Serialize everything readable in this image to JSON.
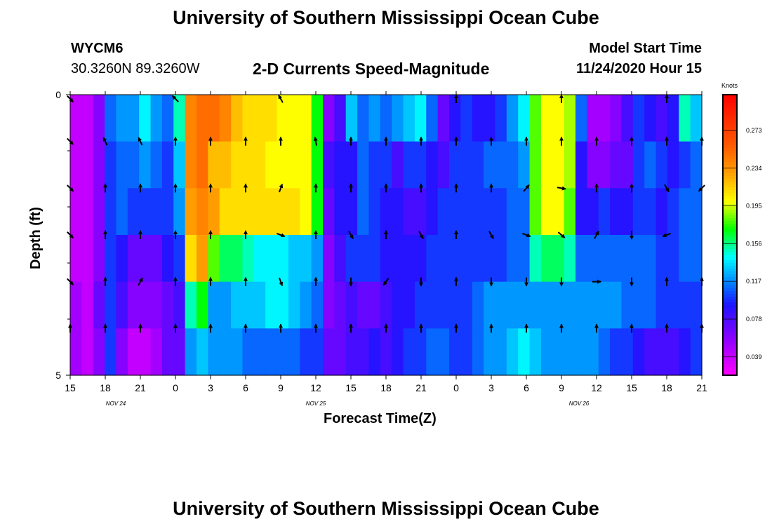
{
  "header": {
    "title": "University of Southern Mississippi Ocean Cube",
    "station": "WYCM6",
    "coords": "30.3260N 89.3260W",
    "plot_title": "2-D Currents Speed-Magnitude",
    "model_start_label": "Model Start Time",
    "model_start_value": "11/24/2020 Hour 15"
  },
  "footer": {
    "title": "University of Southern Mississippi Ocean Cube"
  },
  "chart_data": {
    "type": "heatmap",
    "title": "2-D Currents Speed-Magnitude",
    "xlabel": "Forecast Time(Z)",
    "ylabel": "Depth (ft)",
    "x_tick_labels": [
      "15",
      "18",
      "21",
      "0",
      "3",
      "6",
      "9",
      "12",
      "15",
      "18",
      "21",
      "0",
      "3",
      "6",
      "9",
      "12",
      "15",
      "18",
      "21"
    ],
    "y_tick_labels": [
      "0",
      "5"
    ],
    "ylim": [
      0,
      5
    ],
    "date_labels": [
      {
        "text": "NOV  24",
        "tick_index": 1.3
      },
      {
        "text": "NOV  25",
        "tick_index": 7.0
      },
      {
        "text": "NOV  26",
        "tick_index": 14.5
      }
    ],
    "hours_per_tick": 3,
    "num_time_steps": 55,
    "colorbar": {
      "unit": "Knots",
      "min": 0.02,
      "max": 0.31,
      "ticks": [
        "0.039",
        "0.078",
        "0.117",
        "0.156",
        "0.195",
        "0.234",
        "0.273"
      ]
    },
    "speed_rows_knots": [
      [
        0.04,
        0.04,
        0.06,
        0.11,
        0.12,
        0.12,
        0.14,
        0.12,
        0.11,
        0.15,
        0.24,
        0.25,
        0.25,
        0.24,
        0.22,
        0.21,
        0.21,
        0.21,
        0.2,
        0.2,
        0.2,
        0.17,
        0.06,
        0.08,
        0.13,
        0.11,
        0.12,
        0.11,
        0.12,
        0.13,
        0.14,
        0.11,
        0.07,
        0.09,
        0.1,
        0.09,
        0.09,
        0.1,
        0.12,
        0.14,
        0.18,
        0.2,
        0.2,
        0.19,
        0.11,
        0.05,
        0.05,
        0.06,
        0.08,
        0.1,
        0.09,
        0.08,
        0.09,
        0.15,
        0.13
      ],
      [
        0.04,
        0.04,
        0.06,
        0.1,
        0.11,
        0.11,
        0.12,
        0.11,
        0.1,
        0.13,
        0.24,
        0.25,
        0.22,
        0.22,
        0.21,
        0.21,
        0.21,
        0.2,
        0.2,
        0.2,
        0.2,
        0.17,
        0.08,
        0.09,
        0.09,
        0.11,
        0.1,
        0.1,
        0.08,
        0.1,
        0.1,
        0.09,
        0.08,
        0.1,
        0.1,
        0.1,
        0.11,
        0.11,
        0.11,
        0.12,
        0.18,
        0.2,
        0.2,
        0.19,
        0.09,
        0.06,
        0.06,
        0.07,
        0.07,
        0.1,
        0.11,
        0.1,
        0.09,
        0.1,
        0.11
      ],
      [
        0.04,
        0.04,
        0.06,
        0.1,
        0.11,
        0.1,
        0.1,
        0.1,
        0.1,
        0.12,
        0.23,
        0.24,
        0.23,
        0.21,
        0.21,
        0.21,
        0.21,
        0.21,
        0.21,
        0.21,
        0.2,
        0.17,
        0.07,
        0.09,
        0.09,
        0.11,
        0.1,
        0.09,
        0.09,
        0.08,
        0.08,
        0.09,
        0.1,
        0.1,
        0.1,
        0.1,
        0.1,
        0.1,
        0.11,
        0.11,
        0.18,
        0.2,
        0.2,
        0.18,
        0.09,
        0.09,
        0.1,
        0.09,
        0.09,
        0.1,
        0.1,
        0.09,
        0.1,
        0.11,
        0.11
      ],
      [
        0.04,
        0.04,
        0.06,
        0.1,
        0.09,
        0.07,
        0.07,
        0.07,
        0.09,
        0.1,
        0.21,
        0.23,
        0.18,
        0.16,
        0.16,
        0.15,
        0.14,
        0.14,
        0.14,
        0.13,
        0.13,
        0.12,
        0.06,
        0.08,
        0.1,
        0.1,
        0.1,
        0.09,
        0.09,
        0.09,
        0.09,
        0.1,
        0.1,
        0.1,
        0.1,
        0.1,
        0.1,
        0.1,
        0.11,
        0.11,
        0.15,
        0.16,
        0.16,
        0.15,
        0.11,
        0.11,
        0.11,
        0.11,
        0.11,
        0.11,
        0.11,
        0.1,
        0.1,
        0.11,
        0.11
      ],
      [
        0.05,
        0.04,
        0.07,
        0.1,
        0.08,
        0.06,
        0.06,
        0.06,
        0.07,
        0.08,
        0.15,
        0.17,
        0.12,
        0.12,
        0.13,
        0.13,
        0.13,
        0.14,
        0.14,
        0.13,
        0.12,
        0.11,
        0.06,
        0.07,
        0.08,
        0.07,
        0.07,
        0.08,
        0.09,
        0.09,
        0.1,
        0.1,
        0.1,
        0.1,
        0.1,
        0.11,
        0.12,
        0.12,
        0.12,
        0.12,
        0.12,
        0.12,
        0.12,
        0.12,
        0.12,
        0.12,
        0.12,
        0.12,
        0.11,
        0.11,
        0.11,
        0.1,
        0.1,
        0.1,
        0.1
      ],
      [
        0.05,
        0.04,
        0.06,
        0.1,
        0.06,
        0.04,
        0.04,
        0.05,
        0.07,
        0.07,
        0.12,
        0.13,
        0.12,
        0.12,
        0.12,
        0.11,
        0.11,
        0.11,
        0.11,
        0.11,
        0.1,
        0.1,
        0.07,
        0.07,
        0.08,
        0.08,
        0.09,
        0.08,
        0.09,
        0.1,
        0.1,
        0.11,
        0.11,
        0.1,
        0.1,
        0.11,
        0.12,
        0.12,
        0.13,
        0.14,
        0.13,
        0.12,
        0.12,
        0.12,
        0.12,
        0.12,
        0.11,
        0.1,
        0.1,
        0.09,
        0.08,
        0.08,
        0.08,
        0.09,
        0.1
      ]
    ],
    "arrow_rows_deg": [
      [
        135,
        null,
        null,
        315,
        null,
        null,
        330,
        null,
        null,
        null,
        null,
        0,
        null,
        null,
        0,
        null,
        null,
        0,
        null,
        null,
        0,
        null,
        null,
        0,
        null,
        null,
        0,
        null,
        null,
        null,
        null,
        null,
        null,
        null,
        null,
        null,
        null,
        null,
        null,
        null,
        null,
        null,
        null,
        null,
        null,
        null,
        null,
        null,
        null,
        null,
        null,
        null,
        null,
        135,
        null,
        45,
        null
      ],
      [
        135,
        335,
        335,
        0,
        0,
        0,
        0,
        350,
        0,
        0,
        0,
        0,
        0,
        0,
        0,
        0,
        0,
        0,
        0,
        0,
        0,
        null,
        null,
        null,
        null,
        null,
        null,
        null,
        null,
        null,
        null,
        null,
        null,
        null,
        null,
        null,
        null,
        null,
        null,
        null,
        null,
        null,
        null,
        null,
        null,
        null,
        null,
        null,
        null,
        null,
        null,
        null,
        null,
        null,
        null,
        null,
        null
      ],
      [
        135,
        0,
        0,
        0,
        0,
        0,
        20,
        0,
        0,
        0,
        0,
        0,
        0,
        40,
        100,
        0,
        0,
        150,
        225,
        120,
        0
      ],
      [
        135,
        0,
        0,
        0,
        0,
        0,
        110,
        0,
        150,
        0,
        150,
        0,
        150,
        110,
        130,
        30,
        180,
        250
      ],
      [
        135,
        0,
        30,
        0,
        0,
        0,
        160,
        0,
        180,
        215,
        180,
        0,
        180,
        180,
        180,
        90,
        180,
        0,
        0
      ],
      [
        0,
        0,
        0,
        0,
        0,
        0,
        0,
        0,
        0,
        0,
        0,
        0,
        0,
        0,
        0,
        0,
        0,
        0,
        0
      ]
    ]
  }
}
